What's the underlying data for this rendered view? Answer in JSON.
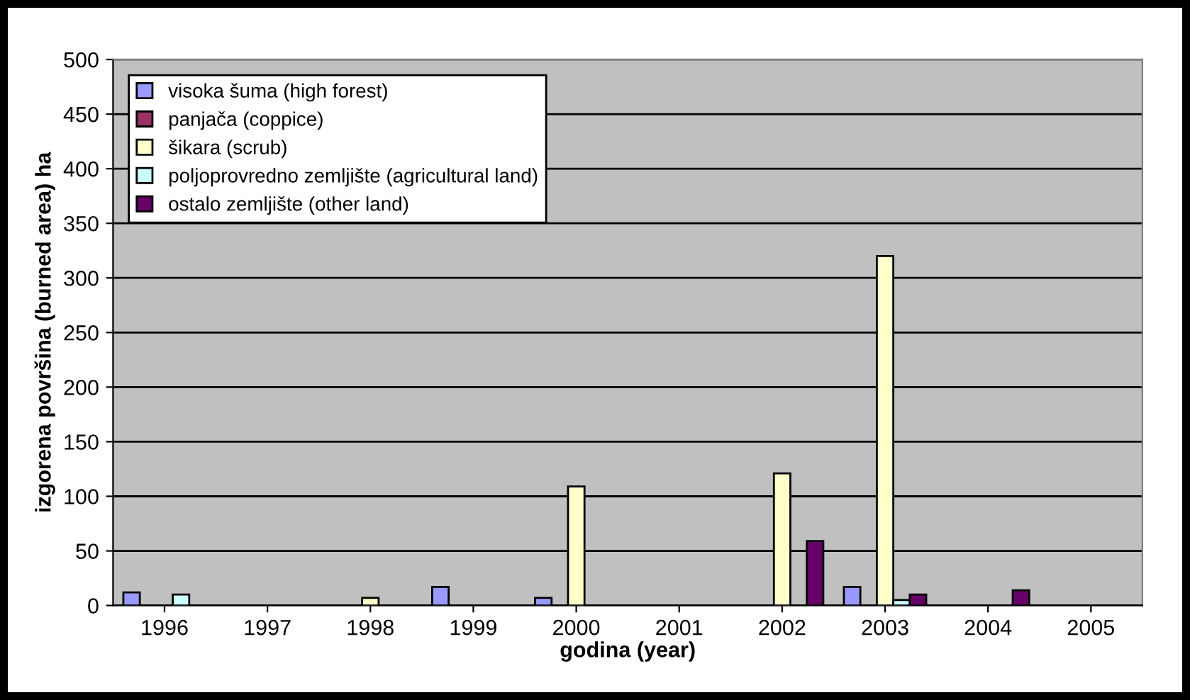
{
  "chart_data": {
    "type": "bar",
    "xlabel": "godina (year)",
    "ylabel": "izgorena površina (burned area) ha",
    "categories": [
      "1996",
      "1997",
      "1998",
      "1999",
      "2000",
      "2001",
      "2002",
      "2003",
      "2004",
      "2005"
    ],
    "series": [
      {
        "name": "visoka šuma (high forest)",
        "color": "#9999ff",
        "values": [
          12,
          0,
          0,
          17,
          7,
          0,
          0,
          17,
          0,
          0
        ]
      },
      {
        "name": "panjača (coppice)",
        "color": "#993366",
        "values": [
          0,
          0,
          0,
          0,
          0,
          0,
          0,
          0,
          0,
          0
        ]
      },
      {
        "name": "šikara (scrub)",
        "color": "#ffffcc",
        "values": [
          0,
          0,
          7,
          0,
          109,
          0,
          121,
          320,
          0,
          0
        ]
      },
      {
        "name": "poljoprovredno zemljište (agricultural land)",
        "color": "#ccffff",
        "values": [
          10,
          0,
          0,
          0,
          0,
          0,
          0,
          5,
          0,
          0
        ]
      },
      {
        "name": "ostalo zemljište (other land)",
        "color": "#660066",
        "values": [
          0,
          0,
          0,
          0,
          0,
          0,
          59,
          10,
          14,
          0
        ]
      }
    ],
    "ylim": [
      0,
      500
    ],
    "yticks": [
      0,
      50,
      100,
      150,
      200,
      250,
      300,
      350,
      400,
      450,
      500
    ],
    "grid": "y",
    "legend": "top left"
  }
}
